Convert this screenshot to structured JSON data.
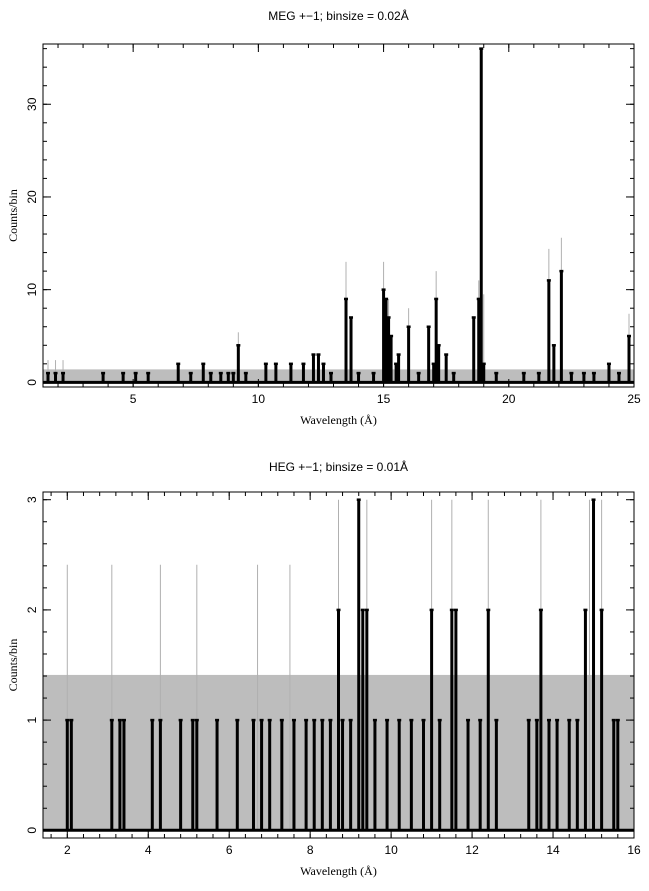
{
  "chart_data": [
    {
      "type": "line",
      "title": "MEG +−1; binsize = 0.02Å",
      "xlabel": "Wavelength (Å)",
      "ylabel": "Counts/bin",
      "xlim": [
        1.4,
        25.0
      ],
      "ylim": [
        -0.5,
        36.5
      ],
      "xticks": [
        5,
        10,
        15,
        20,
        25
      ],
      "yticks": [
        0,
        10,
        20,
        30
      ],
      "grid": false,
      "error_band": [
        {
          "x0": 1.4,
          "x1": 25.0,
          "y": 1.4
        }
      ],
      "error_bars": [
        {
          "x": 1.6,
          "y": 2.4
        },
        {
          "x": 1.9,
          "y": 2.4
        },
        {
          "x": 2.2,
          "y": 2.4
        },
        {
          "x": 9.2,
          "y": 5.4
        },
        {
          "x": 13.5,
          "y": 13.0
        },
        {
          "x": 15.0,
          "y": 13.0
        },
        {
          "x": 15.2,
          "y": 9.0
        },
        {
          "x": 16.0,
          "y": 8.0
        },
        {
          "x": 17.1,
          "y": 12.0
        },
        {
          "x": 18.8,
          "y": 11.0
        },
        {
          "x": 19.0,
          "y": 9.5
        },
        {
          "x": 21.6,
          "y": 14.4
        },
        {
          "x": 22.1,
          "y": 15.6
        },
        {
          "x": 24.8,
          "y": 7.4
        }
      ],
      "series": [
        {
          "x": [
            1.6,
            1.9,
            2.2,
            3.8,
            4.6,
            5.1,
            5.6,
            6.8,
            7.3,
            7.8,
            8.1,
            8.5,
            8.8,
            9.0,
            9.2,
            9.5,
            10.3,
            10.7,
            11.3,
            11.8,
            12.2,
            12.4,
            12.6,
            12.9,
            13.5,
            13.7,
            14.0,
            14.6,
            15.0,
            15.1,
            15.2,
            15.3,
            15.5,
            15.6,
            16.0,
            16.4,
            16.8,
            17.0,
            17.1,
            17.2,
            17.5,
            17.8,
            18.6,
            18.8,
            18.9,
            19.0,
            19.5,
            20.6,
            21.2,
            21.6,
            21.8,
            22.1,
            22.5,
            23.0,
            23.4,
            24.0,
            24.4,
            24.8
          ],
          "y": [
            1,
            1,
            1,
            1,
            1,
            1,
            1,
            2,
            1,
            2,
            1,
            1,
            1,
            1,
            4,
            1,
            2,
            2,
            2,
            2,
            3,
            3,
            2,
            1,
            9,
            7,
            1,
            1,
            10,
            9,
            7,
            5,
            2,
            3,
            6,
            1,
            6,
            2,
            9,
            4,
            3,
            1,
            7,
            9,
            36,
            2,
            1,
            1,
            1,
            11,
            4,
            12,
            1,
            1,
            1,
            2,
            1,
            5
          ]
        }
      ]
    },
    {
      "type": "line",
      "title": "HEG +−1; binsize = 0.01Å",
      "xlabel": "Wavelength (Å)",
      "ylabel": "Counts/bin",
      "xlim": [
        1.4,
        16.0
      ],
      "ylim": [
        -0.07,
        3.07
      ],
      "xticks": [
        2,
        4,
        6,
        8,
        10,
        12,
        14,
        16
      ],
      "yticks": [
        0,
        1,
        2,
        3
      ],
      "grid": false,
      "error_band": [
        {
          "x0": 1.4,
          "x1": 16.0,
          "y": 1.41
        }
      ],
      "error_bars": [
        {
          "x": 2.0,
          "y": 2.41
        },
        {
          "x": 3.1,
          "y": 2.41
        },
        {
          "x": 4.3,
          "y": 2.41
        },
        {
          "x": 5.2,
          "y": 2.41
        },
        {
          "x": 6.7,
          "y": 2.41
        },
        {
          "x": 7.5,
          "y": 2.41
        },
        {
          "x": 8.7,
          "y": 3.0
        },
        {
          "x": 9.2,
          "y": 3.0
        },
        {
          "x": 9.4,
          "y": 3.0
        },
        {
          "x": 11.0,
          "y": 3.0
        },
        {
          "x": 11.5,
          "y": 3.0
        },
        {
          "x": 12.4,
          "y": 3.0
        },
        {
          "x": 13.7,
          "y": 3.0
        },
        {
          "x": 14.9,
          "y": 3.0
        },
        {
          "x": 15.0,
          "y": 3.0
        },
        {
          "x": 15.2,
          "y": 3.0
        }
      ],
      "series": [
        {
          "x": [
            2.0,
            2.1,
            3.1,
            3.3,
            3.4,
            4.1,
            4.3,
            4.8,
            5.1,
            5.2,
            5.7,
            6.2,
            6.6,
            6.8,
            7.0,
            7.3,
            7.6,
            7.9,
            8.1,
            8.3,
            8.5,
            8.7,
            8.8,
            9.0,
            9.2,
            9.3,
            9.4,
            9.6,
            9.9,
            10.2,
            10.5,
            10.8,
            11.0,
            11.2,
            11.5,
            11.6,
            11.9,
            12.2,
            12.4,
            12.6,
            13.4,
            13.6,
            13.7,
            13.9,
            14.1,
            14.4,
            14.6,
            14.8,
            15.0,
            15.2,
            15.5,
            15.6
          ],
          "y": [
            1,
            1,
            1,
            1,
            1,
            1,
            1,
            1,
            1,
            1,
            1,
            1,
            1,
            1,
            1,
            1,
            1,
            1,
            1,
            1,
            1,
            2,
            1,
            1,
            3,
            2,
            2,
            1,
            1,
            1,
            1,
            1,
            2,
            1,
            2,
            2,
            1,
            1,
            2,
            1,
            1,
            1,
            2,
            1,
            1,
            1,
            1,
            2,
            3,
            2,
            1,
            1
          ]
        }
      ]
    }
  ]
}
